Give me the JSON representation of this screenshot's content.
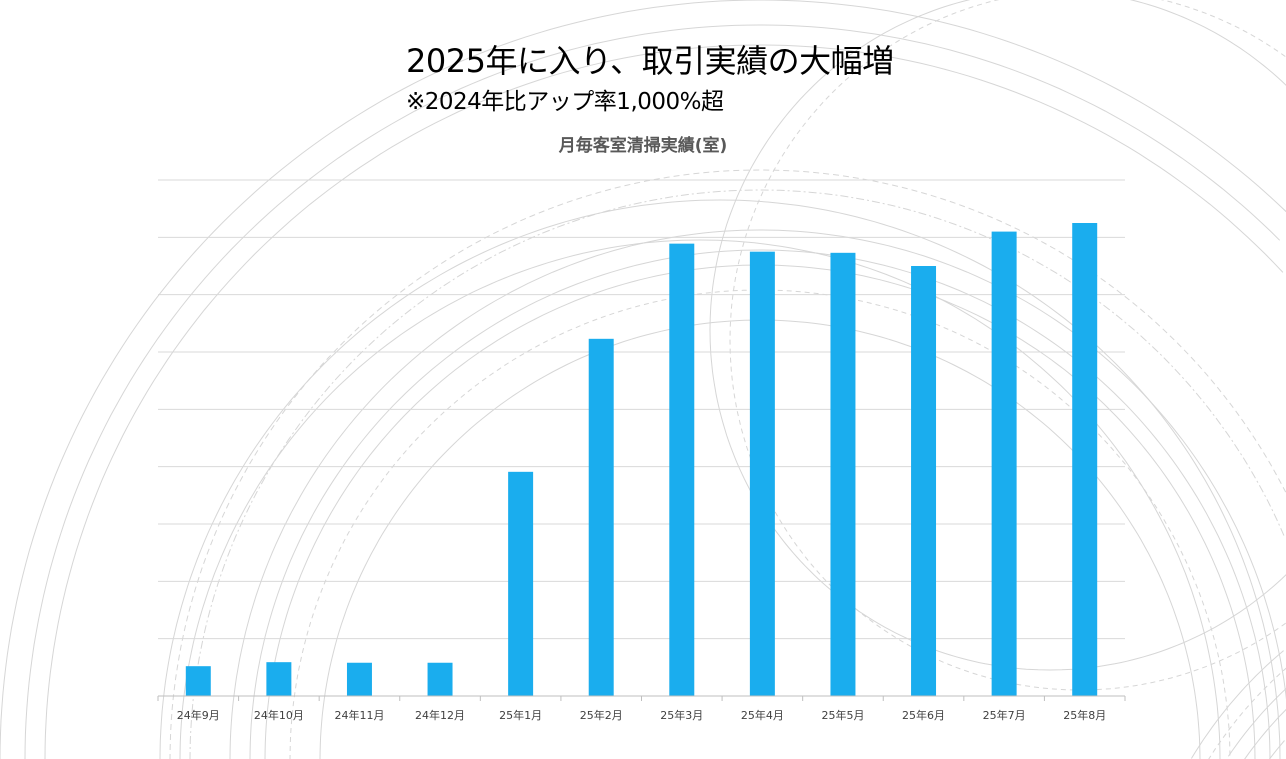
{
  "slide": {
    "headline": "2025年に入り、取引実績の大幅増",
    "subline": "※2024年比アップ率1,000%超"
  },
  "colors": {
    "bar": "#1AADEE",
    "grid": "#D9D9D9",
    "axis": "#BFBFBF",
    "title": "#595959",
    "decor": "#D6D6D6"
  },
  "chart_data": {
    "type": "bar",
    "title": "月毎客室清掃実績(室)",
    "xlabel": "",
    "ylabel": "",
    "y_units_note": "no y-axis labels shown; values in gridline units",
    "ylim": [
      0,
      9
    ],
    "grid": true,
    "gridline_count": 9,
    "legend": "none",
    "categories": [
      "24年9月",
      "24年10月",
      "24年11月",
      "24年12月",
      "25年1月",
      "25年2月",
      "25年3月",
      "25年4月",
      "25年5月",
      "25年6月",
      "25年7月",
      "25年8月"
    ],
    "values": [
      0.52,
      0.59,
      0.58,
      0.58,
      3.91,
      6.23,
      7.89,
      7.75,
      7.73,
      7.5,
      8.1,
      8.25
    ]
  }
}
